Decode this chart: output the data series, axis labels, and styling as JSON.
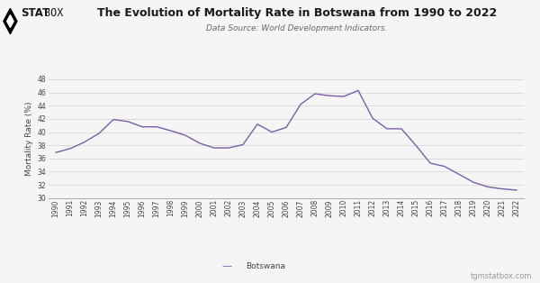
{
  "title": "The Evolution of Mortality Rate in Botswana from 1990 to 2022",
  "subtitle": "Data Source: World Development Indicators.",
  "ylabel": "Mortality Rate (%)",
  "legend_label": "Botswana",
  "watermark": "tgmstatbox.com",
  "line_color": "#7B5EA7",
  "bg_color": "#f5f5f5",
  "grid_color": "#d0d0d0",
  "years": [
    1990,
    1991,
    1992,
    1993,
    1994,
    1995,
    1996,
    1997,
    1998,
    1999,
    2000,
    2001,
    2002,
    2003,
    2004,
    2005,
    2006,
    2007,
    2008,
    2009,
    2010,
    2011,
    2012,
    2013,
    2014,
    2015,
    2016,
    2017,
    2018,
    2019,
    2020,
    2021,
    2022
  ],
  "values": [
    36.9,
    37.5,
    38.5,
    39.8,
    41.9,
    41.6,
    40.8,
    40.8,
    40.2,
    39.5,
    38.3,
    37.6,
    37.6,
    38.1,
    41.2,
    40.0,
    40.7,
    44.2,
    45.8,
    45.5,
    45.4,
    46.3,
    42.1,
    40.5,
    40.5,
    38.0,
    35.3,
    34.8,
    33.6,
    32.4,
    31.7,
    31.4,
    31.2
  ],
  "ylim": [
    30,
    48
  ],
  "yticks": [
    30,
    32,
    34,
    36,
    38,
    40,
    42,
    44,
    46,
    48
  ],
  "title_fontsize": 9,
  "subtitle_fontsize": 6.5,
  "ylabel_fontsize": 6.5,
  "tick_fontsize": 5.5,
  "legend_fontsize": 6.5,
  "watermark_fontsize": 6,
  "logo_fontsize": 8.5
}
